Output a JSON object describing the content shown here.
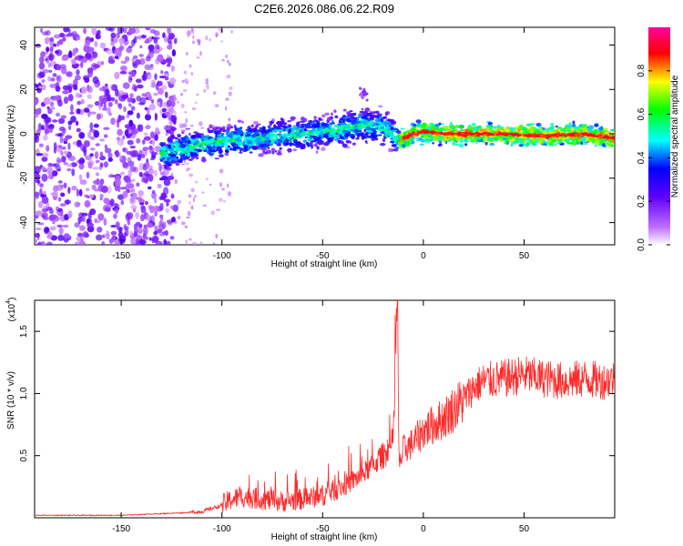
{
  "chart_data": [
    {
      "type": "heatmap",
      "title": "C2E6.2026.086.06.22.R09",
      "xlabel": "Height of straight line (km)",
      "ylabel": "Frequency (Hz)",
      "xlim": [
        -193,
        95
      ],
      "ylim": [
        -50,
        48
      ],
      "xticks": [
        -150,
        -100,
        -50,
        0,
        50
      ],
      "yticks": [
        -40,
        -20,
        0,
        20,
        40
      ],
      "colorbar": {
        "label": "Normalized spectral amplitude",
        "range": [
          0.0,
          1.0
        ],
        "ticks": [
          "0.0",
          "0.2",
          "0.4",
          "0.6",
          "0.8"
        ],
        "tick_values": [
          0.0,
          0.2,
          0.4,
          0.6,
          0.8
        ],
        "colors": [
          "#ffffff",
          "#8a00ff",
          "#0000ff",
          "#00ffff",
          "#00ff00",
          "#ffff00",
          "#ff0000",
          "#ff00a0"
        ]
      },
      "signal_trace": {
        "description_free": true,
        "x": [
          -125,
          -110,
          -100,
          -80,
          -60,
          -40,
          -30,
          -20,
          -12,
          -5,
          0,
          10,
          20,
          40,
          60,
          80,
          95
        ],
        "y": [
          -8,
          -5,
          -3,
          -2,
          0,
          2,
          4,
          3,
          -3,
          0,
          1,
          0,
          0,
          0,
          -1,
          0,
          -2
        ]
      },
      "outlier_blob": {
        "x": -30,
        "y": 18
      }
    },
    {
      "type": "line",
      "title": "",
      "xlabel": "Height of straight line (km)",
      "ylabel": "SNR (10 * v/v)",
      "scale_label": "(x10",
      "scale_exp": "4",
      "xlim": [
        -193,
        95
      ],
      "ylim": [
        0,
        1.75
      ],
      "xticks": [
        -150,
        -100,
        -50,
        0,
        50
      ],
      "yticks": [
        0.5,
        1.0,
        1.5
      ],
      "ytick_labels": [
        "0.5",
        "1.0",
        "1.5"
      ],
      "color": "#ff0000",
      "series": [
        {
          "name": "SNR",
          "x": [
            -193,
            -150,
            -120,
            -110,
            -100,
            -95,
            -90,
            -80,
            -70,
            -60,
            -50,
            -40,
            -30,
            -20,
            -15,
            -13,
            -12,
            -10,
            -5,
            0,
            10,
            20,
            25,
            30,
            40,
            50,
            60,
            70,
            80,
            90,
            95
          ],
          "y": [
            0.02,
            0.02,
            0.04,
            0.05,
            0.1,
            0.15,
            0.17,
            0.15,
            0.13,
            0.15,
            0.18,
            0.25,
            0.35,
            0.5,
            0.6,
            1.75,
            0.4,
            0.55,
            0.6,
            0.7,
            0.8,
            0.95,
            1.05,
            1.1,
            1.12,
            1.15,
            1.12,
            1.1,
            1.12,
            1.1,
            1.12
          ]
        }
      ]
    }
  ]
}
